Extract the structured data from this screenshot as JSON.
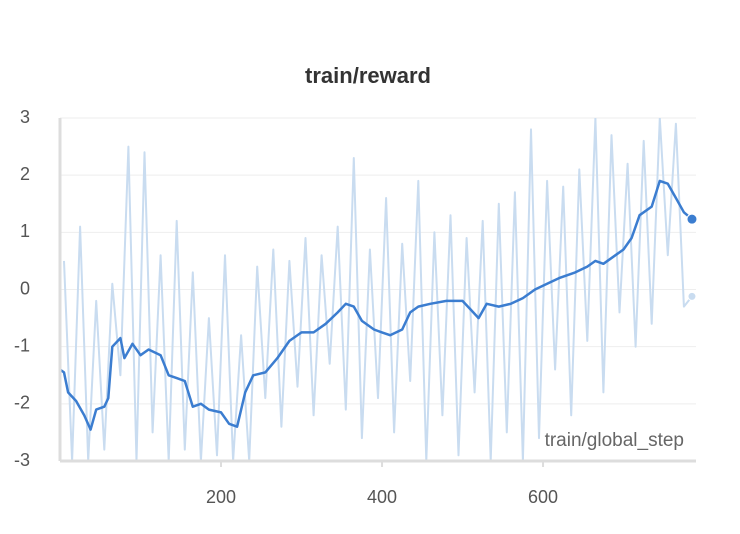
{
  "chart_data": {
    "type": "line",
    "title": "train/reward",
    "xlabel": "train/global_step",
    "xlim": [
      0,
      790
    ],
    "ylim": [
      -3,
      3
    ],
    "xticks": [
      200,
      400,
      600
    ],
    "yticks": [
      -3,
      -2,
      -1,
      0,
      1,
      2,
      3
    ],
    "grid": true,
    "series": [
      {
        "color": "#c9dcf0",
        "x": [
          5,
          15,
          25,
          35,
          45,
          55,
          65,
          75,
          85,
          95,
          105,
          115,
          125,
          135,
          145,
          155,
          165,
          175,
          185,
          195,
          205,
          215,
          225,
          235,
          245,
          255,
          265,
          275,
          285,
          295,
          305,
          315,
          325,
          335,
          345,
          355,
          365,
          375,
          385,
          395,
          405,
          415,
          425,
          435,
          445,
          455,
          465,
          475,
          485,
          495,
          505,
          515,
          525,
          535,
          545,
          555,
          565,
          575,
          585,
          595,
          605,
          615,
          625,
          635,
          645,
          655,
          665,
          675,
          685,
          695,
          705,
          715,
          725,
          735,
          745,
          755,
          765,
          775,
          785
        ],
        "values": [
          0.5,
          -3,
          1.1,
          -3,
          -0.2,
          -2.8,
          0.1,
          -1.5,
          2.5,
          -3,
          2.4,
          -2.5,
          0.6,
          -3,
          1.2,
          -2.8,
          0.3,
          -3,
          -0.5,
          -2.9,
          0.6,
          -3,
          -0.8,
          -3,
          0.4,
          -1.9,
          0.7,
          -2.4,
          0.5,
          -1.7,
          0.9,
          -2.2,
          0.6,
          -1.3,
          1.1,
          -2.1,
          2.3,
          -2.6,
          0.7,
          -1.9,
          1.6,
          -2.5,
          0.8,
          -1.6,
          1.9,
          -3,
          1.0,
          -2.2,
          1.3,
          -2.9,
          0.9,
          -1.8,
          1.2,
          -3,
          1.5,
          -2.5,
          1.7,
          -3,
          2.8,
          -2.6,
          1.9,
          -1.4,
          1.8,
          -2.2,
          2.1,
          -0.9,
          3.0,
          -1.8,
          2.7,
          -0.4,
          2.2,
          -1.0,
          2.6,
          -0.6,
          3.0,
          0.6,
          2.9,
          -0.3,
          -0.12
        ]
      },
      {
        "color": "#3b7dd0",
        "x": [
          1,
          5,
          10,
          20,
          30,
          38,
          45,
          55,
          60,
          65,
          75,
          80,
          90,
          100,
          110,
          125,
          135,
          145,
          155,
          165,
          175,
          185,
          200,
          210,
          220,
          230,
          240,
          255,
          270,
          285,
          300,
          315,
          330,
          345,
          355,
          365,
          375,
          390,
          400,
          410,
          425,
          435,
          445,
          460,
          480,
          500,
          510,
          520,
          530,
          545,
          560,
          575,
          590,
          605,
          620,
          640,
          655,
          665,
          675,
          690,
          700,
          710,
          720,
          735,
          745,
          755,
          765,
          775,
          785
        ],
        "values": [
          -1.41,
          -1.45,
          -1.8,
          -1.95,
          -2.2,
          -2.45,
          -2.1,
          -2.05,
          -1.9,
          -1.0,
          -0.85,
          -1.2,
          -0.95,
          -1.15,
          -1.05,
          -1.15,
          -1.5,
          -1.55,
          -1.6,
          -2.05,
          -2.0,
          -2.1,
          -2.15,
          -2.35,
          -2.4,
          -1.8,
          -1.5,
          -1.45,
          -1.2,
          -0.9,
          -0.75,
          -0.75,
          -0.6,
          -0.4,
          -0.25,
          -0.3,
          -0.55,
          -0.7,
          -0.75,
          -0.8,
          -0.7,
          -0.4,
          -0.3,
          -0.25,
          -0.2,
          -0.2,
          -0.35,
          -0.5,
          -0.25,
          -0.3,
          -0.25,
          -0.15,
          0.0,
          0.1,
          0.2,
          0.3,
          0.4,
          0.5,
          0.45,
          0.6,
          0.7,
          0.9,
          1.3,
          1.45,
          1.9,
          1.85,
          1.6,
          1.35,
          1.23
        ]
      }
    ]
  }
}
